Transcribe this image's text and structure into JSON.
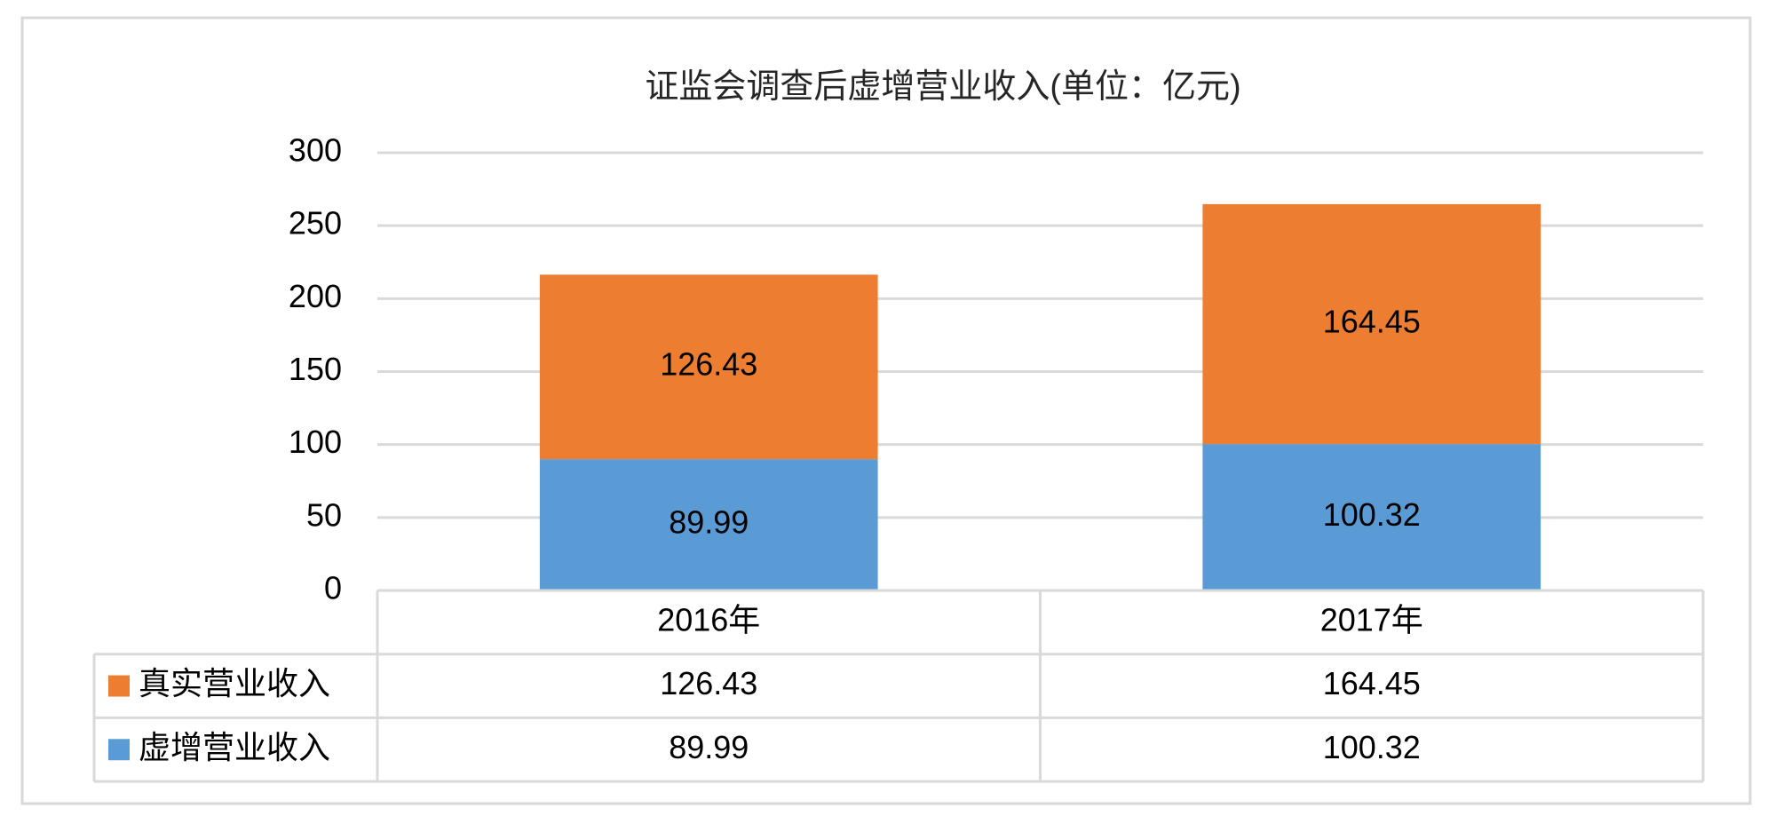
{
  "chart_data": {
    "type": "bar",
    "stacked": true,
    "title": "证监会调查后虚增营业收入(单位：亿元)",
    "categories": [
      "2016年",
      "2017年"
    ],
    "series": [
      {
        "name": "虚增营业收入",
        "color": "#5b9bd5",
        "values": [
          89.99,
          100.32
        ]
      },
      {
        "name": "真实营业收入",
        "color": "#ed7d31",
        "values": [
          126.43,
          164.45
        ]
      }
    ],
    "ylim": [
      0,
      300
    ],
    "yticks": [
      0,
      50,
      100,
      150,
      200,
      250,
      300
    ],
    "grid": true,
    "data_table": true
  }
}
